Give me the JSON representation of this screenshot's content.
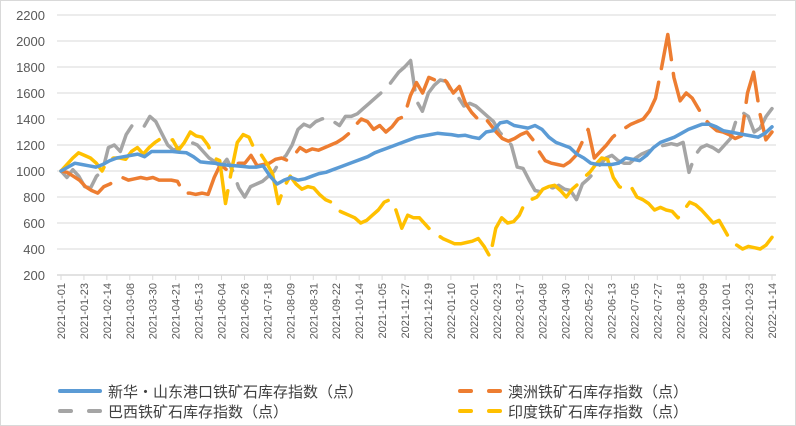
{
  "chart_data": {
    "type": "line",
    "title": "",
    "xlabel": "",
    "ylabel": "",
    "ylim": [
      200,
      2200
    ],
    "yticks": [
      "200",
      "400",
      "600",
      "800",
      "1000",
      "1200",
      "1400",
      "1600",
      "1800",
      "2000",
      "2200"
    ],
    "grid": true,
    "legend_position": "bottom",
    "x_tick_labels": [
      "2021-01-01",
      "2021-01-23",
      "2021-02-14",
      "2021-03-08",
      "2021-03-30",
      "2021-04-21",
      "2021-05-13",
      "2021-06-04",
      "2021-06-26",
      "2021-07-18",
      "2021-08-09",
      "2021-08-31",
      "2021-09-22",
      "2021-10-14",
      "2021-11-05",
      "2021-11-27",
      "2021-12-19",
      "2022-01-10",
      "2022-02-01",
      "2022-02-23",
      "2022-03-17",
      "2022-04-08",
      "2022-04-30",
      "2022-05-22",
      "2022-06-13",
      "2022-07-05",
      "2022-07-27",
      "2022-08-18",
      "2022-09-09",
      "2022-10-01",
      "2022-10-23",
      "2022-11-14"
    ],
    "x_start": "2021-01-01",
    "x_end": "2022-11-14",
    "series": [
      {
        "name": "新华・山东港口铁矿石库存指数（点）",
        "color": "#5b9bd5",
        "style": "solid",
        "values": [
          1000,
          1030,
          1060,
          1050,
          1040,
          1030,
          1050,
          1080,
          1100,
          1110,
          1120,
          1130,
          1110,
          1150,
          1150,
          1150,
          1150,
          1145,
          1140,
          1110,
          1070,
          1065,
          1060,
          1050,
          1045,
          1040,
          1035,
          1030,
          1030,
          1040,
          960,
          900,
          930,
          950,
          930,
          940,
          960,
          980,
          990,
          1010,
          1030,
          1050,
          1070,
          1090,
          1110,
          1140,
          1160,
          1180,
          1200,
          1220,
          1240,
          1260,
          1270,
          1280,
          1290,
          1285,
          1280,
          1270,
          1275,
          1260,
          1250,
          1300,
          1310,
          1370,
          1380,
          1350,
          1340,
          1330,
          1350,
          1320,
          1260,
          1220,
          1200,
          1180,
          1130,
          1100,
          1060,
          1050,
          1050,
          1050,
          1060,
          1100,
          1090,
          1080,
          1120,
          1180,
          1220,
          1240,
          1260,
          1290,
          1320,
          1340,
          1360,
          1360,
          1340,
          1310,
          1300,
          1290,
          1280,
          1270,
          1260,
          1290,
          1340
        ]
      },
      {
        "name": "澳洲铁矿石库存指数（点）",
        "color": "#ed7d31",
        "style": "dash",
        "values": [
          1000,
          990,
          960,
          930,
          880,
          850,
          830,
          880,
          900,
          930,
          950,
          930,
          940,
          950,
          940,
          950,
          930,
          930,
          930,
          920,
          830,
          830,
          820,
          830,
          820,
          950,
          1050,
          1010,
          1040,
          1060,
          1060,
          1120,
          1040,
          1050,
          1060,
          1090,
          1100,
          1080,
          1120,
          1180,
          1150,
          1170,
          1160,
          1180,
          1200,
          1220,
          1250,
          1290,
          1350,
          1400,
          1380,
          1320,
          1350,
          1300,
          1340,
          1400,
          1420,
          1580,
          1680,
          1600,
          1720,
          1700,
          1730,
          1680,
          1600,
          1650,
          1520,
          1450,
          1400,
          1420,
          1360,
          1300,
          1250,
          1230,
          1250,
          1280,
          1300,
          1240,
          1150,
          1080,
          1060,
          1050,
          1040,
          1070,
          1120,
          1220,
          1320,
          1100,
          1150,
          1200,
          1260,
          1300,
          1330,
          1360,
          1380,
          1400,
          1460,
          1560,
          1800,
          2050,
          1720,
          1540,
          1600,
          1560,
          1480,
          1400,
          1350,
          1310,
          1300,
          1280,
          1250,
          1270,
          1600,
          1760,
          1450,
          1240,
          1300
        ]
      },
      {
        "name": "巴西铁矿石库存指数（点）",
        "color": "#a5a5a5",
        "style": "dash",
        "values": [
          1000,
          950,
          1010,
          960,
          880,
          870,
          960,
          1000,
          1180,
          1200,
          1150,
          1280,
          1350,
          1360,
          1340,
          1420,
          1380,
          1290,
          1200,
          1160,
          1180,
          1200,
          1220,
          1200,
          1150,
          1100,
          1070,
          1030,
          1090,
          1000,
          870,
          800,
          880,
          900,
          920,
          960,
          1000,
          1080,
          1120,
          1200,
          1320,
          1360,
          1340,
          1380,
          1400,
          1410,
          1380,
          1350,
          1420,
          1420,
          1440,
          1480,
          1520,
          1560,
          1600,
          1640,
          1700,
          1760,
          1800,
          1850,
          1540,
          1460,
          1600,
          1660,
          1700,
          1690,
          1600,
          1570,
          1500,
          1520,
          1500,
          1460,
          1420,
          1380,
          1300,
          1250,
          1200,
          1030,
          1020,
          930,
          850,
          840,
          880,
          870,
          890,
          860,
          850,
          780,
          900,
          940,
          990,
          1050,
          1100,
          1120,
          1080,
          1060,
          1060,
          1100,
          1130,
          1150,
          1170,
          1190,
          1200,
          1210,
          1200,
          1220,
          990,
          1120,
          1180,
          1200,
          1180,
          1150,
          1200,
          1250,
          1400,
          1450,
          1420,
          1300,
          1330,
          1420,
          1480
        ]
      },
      {
        "name": "印度铁矿石库存指数（点）",
        "color": "#ffc000",
        "style": "dash",
        "values": [
          1000,
          1050,
          1100,
          1140,
          1120,
          1100,
          1060,
          1000,
          1090,
          1100,
          1100,
          1090,
          1150,
          1180,
          1130,
          1180,
          1220,
          1250,
          1230,
          1240,
          1160,
          1220,
          1300,
          1270,
          1260,
          1200,
          1100,
          1080,
          750,
          1000,
          1220,
          1280,
          1260,
          1160,
          1130,
          1060,
          980,
          750,
          880,
          960,
          900,
          860,
          880,
          870,
          820,
          780,
          760,
          700,
          680,
          660,
          640,
          600,
          620,
          660,
          700,
          760,
          780,
          700,
          560,
          660,
          640,
          640,
          590,
          540,
          510,
          480,
          460,
          440,
          440,
          450,
          460,
          480,
          420,
          340,
          560,
          640,
          600,
          610,
          660,
          760,
          780,
          800,
          860,
          880,
          890,
          850,
          800,
          860,
          900,
          950,
          990,
          1050,
          1100,
          1090,
          950,
          880,
          860,
          880,
          800,
          780,
          750,
          700,
          720,
          700,
          690,
          640,
          700,
          760,
          740,
          700,
          650,
          600,
          620,
          540,
          460,
          430,
          400,
          420,
          410,
          400,
          430,
          490
        ]
      }
    ]
  },
  "legend": {
    "items": [
      "新华・山东港口铁矿石库存指数（点）",
      "澳洲铁矿石库存指数（点）",
      "巴西铁矿石库存指数（点）",
      "印度铁矿石库存指数（点）"
    ]
  }
}
